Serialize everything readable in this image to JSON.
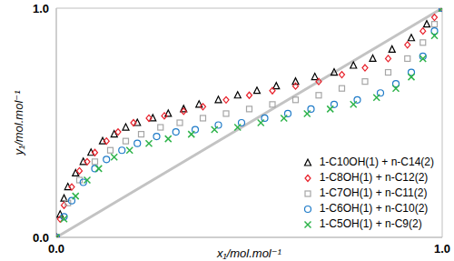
{
  "chart_data": {
    "type": "scatter",
    "x_label": "x₁/mol.mol⁻¹",
    "y_label": "y₁/mol.mol⁻¹",
    "xlim": [
      0,
      1
    ],
    "ylim": [
      0,
      1
    ],
    "xticks": [
      {
        "value": 0,
        "label": "0.0"
      },
      {
        "value": 1,
        "label": "1.0"
      }
    ],
    "yticks": [
      {
        "value": 0,
        "label": "0.0"
      },
      {
        "value": 1,
        "label": "1.0"
      }
    ],
    "grid": false,
    "legend": "lower right",
    "series": [
      {
        "name": "1-C10OH(1) + n-C14(2)",
        "color": "#000000",
        "marker": "triangle",
        "x": [
          0,
          0.01,
          0.02,
          0.03,
          0.05,
          0.07,
          0.09,
          0.12,
          0.15,
          0.18,
          0.21,
          0.25,
          0.29,
          0.33,
          0.37,
          0.42,
          0.47,
          0.52,
          0.57,
          0.62,
          0.67,
          0.72,
          0.77,
          0.82,
          0.87,
          0.92,
          0.96,
          1
        ],
        "values": [
          0,
          0.1,
          0.17,
          0.22,
          0.28,
          0.33,
          0.37,
          0.42,
          0.45,
          0.48,
          0.5,
          0.52,
          0.54,
          0.56,
          0.58,
          0.6,
          0.62,
          0.64,
          0.66,
          0.68,
          0.7,
          0.72,
          0.75,
          0.78,
          0.82,
          0.87,
          0.93,
          1
        ]
      },
      {
        "name": "1-C8OH(1) + n-C12(2)",
        "color": "#e8202a",
        "marker": "diamond",
        "x": [
          0,
          0.01,
          0.02,
          0.04,
          0.06,
          0.08,
          0.1,
          0.13,
          0.16,
          0.2,
          0.24,
          0.28,
          0.33,
          0.38,
          0.44,
          0.5,
          0.56,
          0.62,
          0.68,
          0.74,
          0.8,
          0.86,
          0.91,
          0.95,
          0.98,
          1
        ],
        "values": [
          0,
          0.08,
          0.14,
          0.22,
          0.29,
          0.33,
          0.37,
          0.42,
          0.46,
          0.5,
          0.52,
          0.53,
          0.55,
          0.57,
          0.6,
          0.62,
          0.64,
          0.66,
          0.68,
          0.71,
          0.74,
          0.78,
          0.84,
          0.9,
          0.96,
          1
        ]
      },
      {
        "name": "1-C7OH(1) + n-C11(2)",
        "color": "#a6a6a6",
        "marker": "square",
        "x": [
          0,
          0.03,
          0.06,
          0.1,
          0.14,
          0.18,
          0.22,
          0.27,
          0.32,
          0.38,
          0.44,
          0.5,
          0.56,
          0.62,
          0.68,
          0.74,
          0.8,
          0.86,
          0.91,
          0.95,
          0.98,
          1
        ],
        "values": [
          0,
          0.15,
          0.25,
          0.33,
          0.38,
          0.42,
          0.45,
          0.48,
          0.5,
          0.52,
          0.54,
          0.56,
          0.58,
          0.6,
          0.62,
          0.65,
          0.68,
          0.72,
          0.78,
          0.85,
          0.93,
          1
        ]
      },
      {
        "name": "1-C6OH(1) + n-C10(2)",
        "color": "#1f7bc8",
        "marker": "circle",
        "x": [
          0,
          0.02,
          0.04,
          0.07,
          0.1,
          0.13,
          0.17,
          0.21,
          0.26,
          0.31,
          0.36,
          0.42,
          0.48,
          0.54,
          0.6,
          0.66,
          0.72,
          0.78,
          0.84,
          0.88,
          0.92,
          0.95,
          0.98,
          1
        ],
        "values": [
          0,
          0.09,
          0.16,
          0.24,
          0.3,
          0.34,
          0.38,
          0.41,
          0.44,
          0.46,
          0.47,
          0.49,
          0.5,
          0.52,
          0.54,
          0.56,
          0.58,
          0.6,
          0.63,
          0.67,
          0.72,
          0.79,
          0.9,
          1
        ]
      },
      {
        "name": "1-C5OH(1) + n-C9(2)",
        "color": "#2eb34a",
        "marker": "x",
        "x": [
          0,
          0.02,
          0.05,
          0.08,
          0.11,
          0.15,
          0.19,
          0.24,
          0.29,
          0.35,
          0.41,
          0.47,
          0.53,
          0.59,
          0.65,
          0.71,
          0.77,
          0.83,
          0.88,
          0.92,
          0.95,
          0.98,
          1
        ],
        "values": [
          0,
          0.08,
          0.18,
          0.25,
          0.3,
          0.35,
          0.38,
          0.41,
          0.43,
          0.45,
          0.47,
          0.48,
          0.5,
          0.52,
          0.54,
          0.56,
          0.58,
          0.61,
          0.65,
          0.7,
          0.78,
          0.88,
          1
        ]
      }
    ]
  }
}
